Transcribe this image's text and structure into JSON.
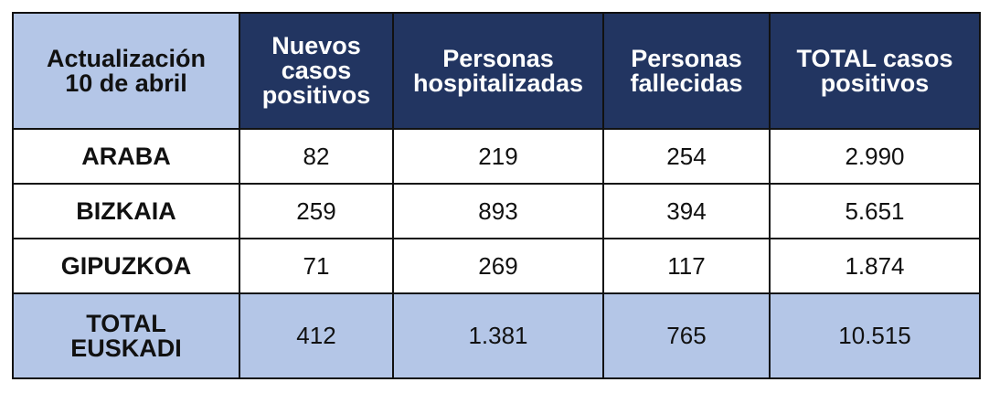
{
  "colors": {
    "header_bg": "#223561",
    "corner_bg": "#b4c6e7",
    "total_bg": "#b4c6e7",
    "border": "#111111"
  },
  "table": {
    "corner": {
      "line1": "Actualización",
      "line2": "10 de abril"
    },
    "headers": [
      {
        "lines": [
          "Nuevos",
          "casos",
          "positivos"
        ]
      },
      {
        "lines": [
          "Personas",
          "hospitalizadas"
        ]
      },
      {
        "lines": [
          "Personas",
          "fallecidas"
        ]
      },
      {
        "lines": [
          "TOTAL casos",
          "positivos"
        ]
      }
    ],
    "rows": [
      {
        "label": "ARABA",
        "values": [
          "82",
          "219",
          "254",
          "2.990"
        ]
      },
      {
        "label": "BIZKAIA",
        "values": [
          "259",
          "893",
          "394",
          "5.651"
        ]
      },
      {
        "label": "GIPUZKOA",
        "values": [
          "71",
          "269",
          "117",
          "1.874"
        ]
      }
    ],
    "total": {
      "label_line1": "TOTAL",
      "label_line2": "EUSKADI",
      "values": [
        "412",
        "1.381",
        "765",
        "10.515"
      ]
    }
  }
}
